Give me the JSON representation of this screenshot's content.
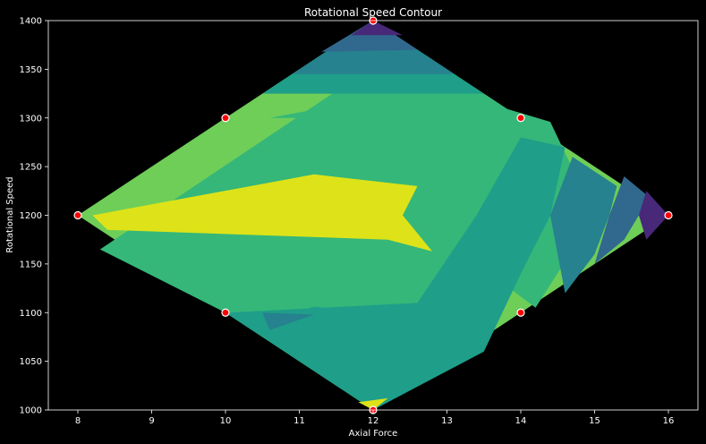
{
  "chart_data": {
    "type": "contour",
    "title": "Rotational Speed Contour",
    "xlabel": "Axial Force",
    "ylabel": "Rotational Speed",
    "xlim": [
      7.6,
      16.4
    ],
    "ylim": [
      1000,
      1400
    ],
    "x_ticks": [
      "8",
      "9",
      "10",
      "11",
      "12",
      "13",
      "14",
      "15",
      "16"
    ],
    "y_ticks": [
      "1000",
      "1050",
      "1100",
      "1150",
      "1200",
      "1250",
      "1300",
      "1350",
      "1400"
    ],
    "grid": false,
    "colors": {
      "background": "#000000",
      "text": "#ffffff",
      "marker_fill": "#ff0000",
      "marker_edge": "#ffffff",
      "levels": [
        "#440154",
        "#482878",
        "#3e4989",
        "#31688e",
        "#26828e",
        "#1f9e89",
        "#35b779",
        "#6ece58",
        "#b5de2b",
        "#dde318"
      ]
    },
    "design_points": [
      {
        "x": 12,
        "y": 1400
      },
      {
        "x": 10,
        "y": 1300
      },
      {
        "x": 14,
        "y": 1300
      },
      {
        "x": 8,
        "y": 1200
      },
      {
        "x": 16,
        "y": 1200
      },
      {
        "x": 10,
        "y": 1100
      },
      {
        "x": 14,
        "y": 1100
      },
      {
        "x": 12,
        "y": 1000
      }
    ],
    "regions": [
      {
        "level": 7,
        "points": [
          [
            8,
            1200
          ],
          [
            12,
            1400
          ],
          [
            16,
            1200
          ],
          [
            12,
            1000
          ]
        ]
      },
      {
        "level": 6,
        "points": [
          [
            11.9,
            1348
          ],
          [
            12.1,
            1348
          ],
          [
            14.4,
            1296
          ],
          [
            15,
            1200
          ],
          [
            14.2,
            1105
          ],
          [
            13.2,
            1162
          ],
          [
            12,
            1000
          ],
          [
            10,
            1100
          ],
          [
            8.3,
            1165
          ]
        ]
      },
      {
        "level": 5,
        "points": [
          [
            10.0,
            1100
          ],
          [
            12.6,
            1110
          ],
          [
            13.4,
            1200
          ],
          [
            14.0,
            1280
          ],
          [
            14.6,
            1270
          ],
          [
            14.4,
            1200
          ],
          [
            14.0,
            1140
          ],
          [
            13.5,
            1060
          ],
          [
            12.0,
            1000
          ]
        ]
      },
      {
        "level": 4,
        "points": [
          [
            14.7,
            1260
          ],
          [
            15.3,
            1230
          ],
          [
            15.2,
            1200
          ],
          [
            15.0,
            1160
          ],
          [
            14.6,
            1120
          ],
          [
            14.4,
            1200
          ]
        ]
      },
      {
        "level": 3,
        "points": [
          [
            15.4,
            1240
          ],
          [
            15.8,
            1215
          ],
          [
            15.6,
            1200
          ],
          [
            15.4,
            1175
          ],
          [
            15.0,
            1150
          ],
          [
            15.2,
            1200
          ]
        ]
      },
      {
        "level": 1,
        "points": [
          [
            15.7,
            1225
          ],
          [
            16,
            1200
          ],
          [
            15.7,
            1175
          ],
          [
            15.6,
            1200
          ]
        ]
      },
      {
        "level": 6,
        "points": [
          [
            12.0,
            1400
          ],
          [
            14.0,
            1300
          ],
          [
            10.6,
            1300
          ],
          [
            12.0,
            1320
          ]
        ]
      },
      {
        "level": 5,
        "points": [
          [
            12.0,
            1400
          ],
          [
            13.5,
            1325
          ],
          [
            10.5,
            1325
          ]
        ]
      },
      {
        "level": 4,
        "points": [
          [
            12.0,
            1400
          ],
          [
            13.1,
            1345
          ],
          [
            10.9,
            1345
          ]
        ]
      },
      {
        "level": 3,
        "points": [
          [
            12.0,
            1400
          ],
          [
            12.6,
            1370
          ],
          [
            11.3,
            1368
          ]
        ]
      },
      {
        "level": 1,
        "points": [
          [
            12.0,
            1400
          ],
          [
            12.4,
            1385
          ],
          [
            11.7,
            1385
          ]
        ]
      },
      {
        "level": 9,
        "points": [
          [
            8.2,
            1200
          ],
          [
            11.2,
            1242
          ],
          [
            12.6,
            1230
          ],
          [
            12.4,
            1200
          ],
          [
            12.8,
            1163
          ],
          [
            12.2,
            1175
          ],
          [
            8.4,
            1185
          ]
        ]
      },
      {
        "level": 5,
        "points": [
          [
            10.4,
            1088
          ],
          [
            11.2,
            1106
          ],
          [
            12.6,
            1098
          ],
          [
            12.2,
            1060
          ],
          [
            12.0,
            1040
          ],
          [
            10.8,
            1060
          ]
        ]
      },
      {
        "level": 4,
        "points": [
          [
            10.5,
            1100
          ],
          [
            11.2,
            1098
          ],
          [
            10.6,
            1082
          ]
        ]
      },
      {
        "level": 9,
        "points": [
          [
            11.8,
            1008
          ],
          [
            12.2,
            1012
          ],
          [
            12,
            1000
          ]
        ]
      }
    ]
  }
}
